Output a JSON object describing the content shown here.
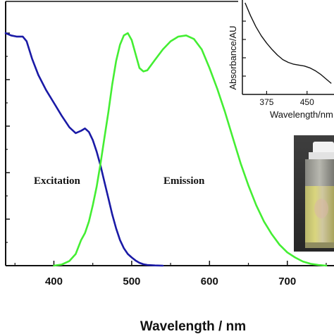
{
  "chart_data": [
    {
      "type": "line",
      "xlabel": "Wavelength / nm",
      "ylabel": "",
      "xlim": [
        338,
        760
      ],
      "ylim": [
        0,
        1.0
      ],
      "x_ticks": [
        400,
        500,
        600,
        700
      ],
      "colors": {
        "excitation": "#1a1aa6",
        "emission": "#44ee33"
      },
      "annotations": [
        "Excitation",
        "Emission"
      ],
      "series": [
        {
          "name": "Excitation",
          "x": [
            338,
            345,
            352,
            360,
            365,
            372,
            380,
            390,
            400,
            410,
            420,
            428,
            435,
            440,
            445,
            450,
            455,
            460,
            465,
            470,
            475,
            480,
            485,
            490,
            495,
            500,
            505,
            510,
            515,
            520,
            530,
            540
          ],
          "y": [
            1.0,
            0.99,
            0.985,
            0.985,
            0.965,
            0.89,
            0.82,
            0.755,
            0.7,
            0.645,
            0.595,
            0.57,
            0.58,
            0.59,
            0.575,
            0.54,
            0.49,
            0.43,
            0.36,
            0.29,
            0.22,
            0.16,
            0.11,
            0.075,
            0.05,
            0.035,
            0.022,
            0.012,
            0.006,
            0.003,
            0.001,
            0.0
          ]
        },
        {
          "name": "Emission",
          "x": [
            400,
            410,
            420,
            428,
            435,
            440,
            445,
            450,
            455,
            460,
            465,
            470,
            475,
            480,
            485,
            490,
            495,
            500,
            505,
            510,
            515,
            520,
            530,
            540,
            550,
            560,
            570,
            580,
            590,
            600,
            610,
            620,
            630,
            640,
            650,
            660,
            670,
            680,
            690,
            700,
            710,
            720,
            730,
            740,
            750
          ],
          "y": [
            0.0,
            0.005,
            0.02,
            0.05,
            0.11,
            0.14,
            0.19,
            0.26,
            0.34,
            0.44,
            0.55,
            0.66,
            0.78,
            0.88,
            0.95,
            0.99,
            1.0,
            0.97,
            0.91,
            0.85,
            0.835,
            0.84,
            0.885,
            0.93,
            0.965,
            0.985,
            0.99,
            0.975,
            0.93,
            0.85,
            0.76,
            0.66,
            0.55,
            0.44,
            0.345,
            0.26,
            0.19,
            0.135,
            0.09,
            0.057,
            0.035,
            0.018,
            0.008,
            0.003,
            0.0
          ]
        }
      ]
    },
    {
      "type": "line",
      "xlabel": "Wavelength/nm",
      "ylabel": "Absorbance/AU",
      "xlim": [
        330,
        500
      ],
      "ylim": [
        0,
        1.0
      ],
      "x_ticks": [
        375,
        450
      ],
      "series": [
        {
          "name": "",
          "x": [
            335,
            345,
            355,
            365,
            375,
            385,
            395,
            405,
            415,
            425,
            435,
            445,
            455,
            465,
            475,
            485,
            495
          ],
          "y": [
            1.0,
            0.86,
            0.74,
            0.64,
            0.56,
            0.49,
            0.43,
            0.38,
            0.35,
            0.33,
            0.32,
            0.31,
            0.29,
            0.26,
            0.22,
            0.17,
            0.12
          ]
        }
      ]
    }
  ],
  "photo": {
    "subject": "cuvette-with-yellow-solution"
  }
}
